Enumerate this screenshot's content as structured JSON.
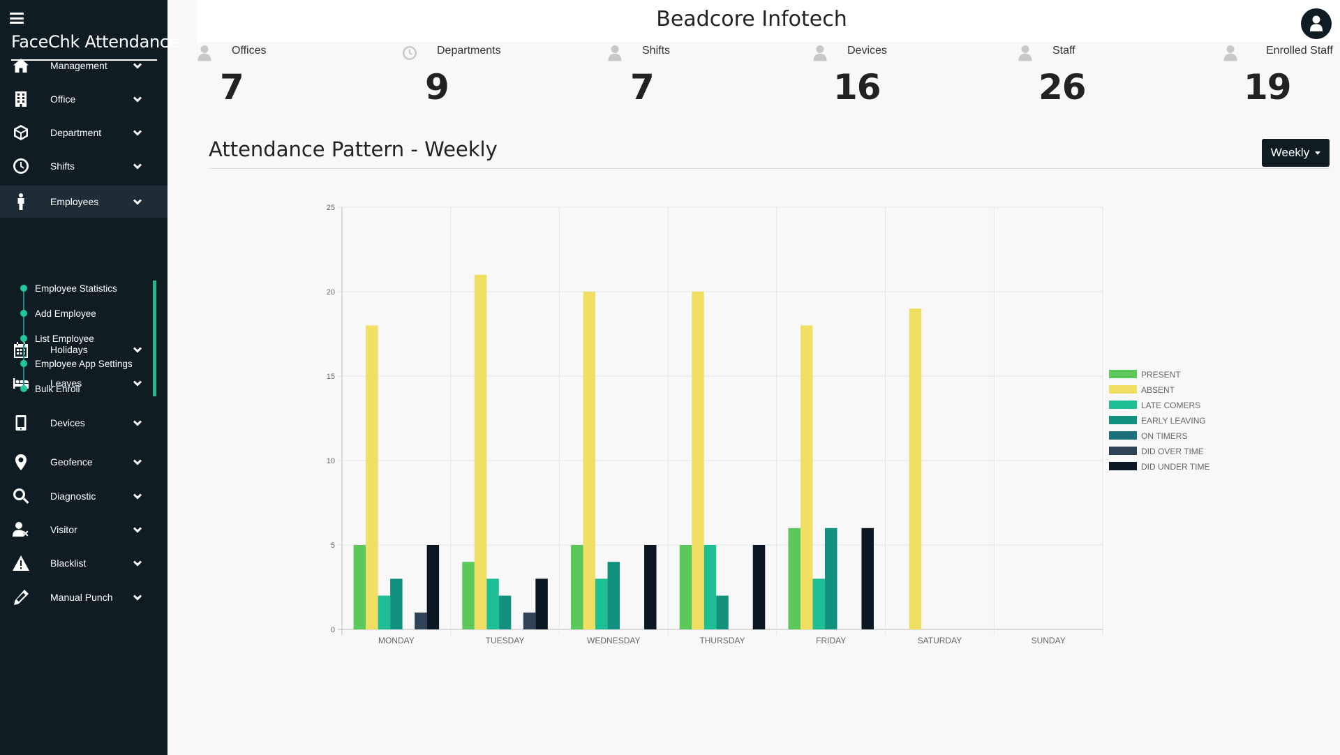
{
  "sidebar": {
    "brand": "FaceChk Attendance",
    "items": [
      {
        "label": "Management",
        "icon": "home-icon"
      },
      {
        "label": "Office",
        "icon": "building-icon"
      },
      {
        "label": "Department",
        "icon": "cube-icon"
      },
      {
        "label": "Shifts",
        "icon": "clock-icon"
      },
      {
        "label": "Employees",
        "icon": "person-icon"
      },
      {
        "label": "Holidays",
        "icon": "calendar-icon"
      },
      {
        "label": "Leaves",
        "icon": "bed-icon"
      },
      {
        "label": "Devices",
        "icon": "mobile-icon"
      },
      {
        "label": "Geofence",
        "icon": "map-marker-icon"
      },
      {
        "label": "Diagnostic",
        "icon": "search-icon"
      },
      {
        "label": "Visitor",
        "icon": "user-times-icon"
      },
      {
        "label": "Blacklist",
        "icon": "warning-icon"
      },
      {
        "label": "Manual Punch",
        "icon": "pencil-icon"
      }
    ],
    "employee_subitems": [
      {
        "label": "Employee Statistics"
      },
      {
        "label": "Add Employee"
      },
      {
        "label": "List Employee"
      },
      {
        "label": "Employee App Settings"
      },
      {
        "label": "Bulk Enroll"
      }
    ]
  },
  "header": {
    "company": "Beadcore Infotech"
  },
  "stats": [
    {
      "label": "Offices",
      "value": "7",
      "icon": "user-icon"
    },
    {
      "label": "Departments",
      "value": "9",
      "icon": "clock-icon"
    },
    {
      "label": "Shifts",
      "value": "7",
      "icon": "user-icon"
    },
    {
      "label": "Devices",
      "value": "16",
      "icon": "user-icon"
    },
    {
      "label": "Staff",
      "value": "26",
      "icon": "user-icon"
    },
    {
      "label": "Enrolled Staff",
      "value": "19",
      "icon": "user-icon"
    }
  ],
  "section": {
    "title": "Attendance Pattern - Weekly",
    "period_button": "Weekly"
  },
  "chart_data": {
    "type": "bar",
    "categories": [
      "MONDAY",
      "TUESDAY",
      "WEDNESDAY",
      "THURSDAY",
      "FRIDAY",
      "SATURDAY",
      "SUNDAY"
    ],
    "ylim": [
      0,
      25
    ],
    "yticks": [
      0,
      5,
      10,
      15,
      20,
      25
    ],
    "grid": true,
    "legend_position": "right",
    "series": [
      {
        "name": "PRESENT",
        "color": "#5cc85c",
        "values": [
          5,
          4,
          5,
          5,
          6,
          0,
          0
        ]
      },
      {
        "name": "ABSENT",
        "color": "#f0df63",
        "values": [
          18,
          21,
          20,
          20,
          18,
          19,
          0
        ]
      },
      {
        "name": "LATE COMERS",
        "color": "#1fbf96",
        "values": [
          2,
          3,
          3,
          5,
          3,
          0,
          0
        ]
      },
      {
        "name": "EARLY LEAVING",
        "color": "#12917f",
        "values": [
          3,
          2,
          4,
          2,
          6,
          0,
          0
        ]
      },
      {
        "name": "ON TIMERS",
        "color": "#1b6f78",
        "values": [
          0,
          0,
          0,
          0,
          0,
          0,
          0
        ]
      },
      {
        "name": "DID OVER TIME",
        "color": "#2f4256",
        "values": [
          1,
          1,
          0,
          0,
          0,
          0,
          0
        ]
      },
      {
        "name": "DID UNDER TIME",
        "color": "#0b1824",
        "values": [
          5,
          3,
          5,
          5,
          6,
          0,
          0
        ]
      }
    ]
  }
}
